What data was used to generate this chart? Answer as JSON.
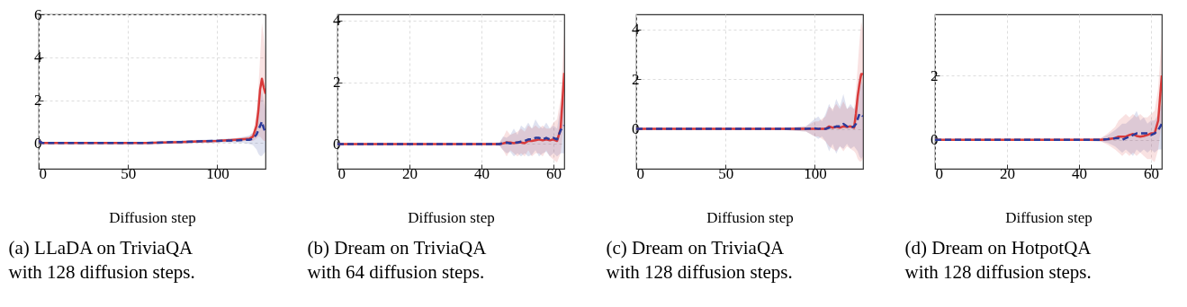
{
  "chart_data": [
    {
      "type": "line",
      "title": "(a) LLaDA on TriviaQA with 128 diffusion steps.",
      "xlabel": "Diffusion step",
      "x": [
        0,
        1,
        2,
        10,
        20,
        30,
        40,
        50,
        60,
        70,
        80,
        90,
        100,
        110,
        115,
        118,
        120,
        122,
        123,
        124,
        125,
        126,
        127
      ],
      "xlim": [
        0,
        127
      ],
      "xticks": [
        0,
        50,
        100
      ],
      "ylim": [
        -1.2,
        6
      ],
      "yticks": [
        0,
        2,
        4,
        6
      ],
      "grid": true,
      "series": [
        {
          "color": "#2b3a9a",
          "line_style": "dashed",
          "values": [
            0.1,
            0.05,
            0,
            0,
            0,
            0,
            0,
            0,
            0,
            0.03,
            0.05,
            0.08,
            0.1,
            0.12,
            0.15,
            0.15,
            0.2,
            0.4,
            0.6,
            0.8,
            1.0,
            0.7,
            0.5
          ],
          "lower": [
            0.05,
            0,
            -0.05,
            -0.05,
            -0.05,
            -0.05,
            -0.05,
            -0.05,
            -0.05,
            -0.05,
            -0.02,
            0,
            0.02,
            0,
            0,
            -0.05,
            -0.1,
            -0.3,
            -0.5,
            -0.6,
            -0.6,
            -0.5,
            -0.4
          ],
          "upper": [
            0.15,
            0.1,
            0.05,
            0.05,
            0.05,
            0.05,
            0.05,
            0.05,
            0.05,
            0.1,
            0.12,
            0.15,
            0.18,
            0.22,
            0.3,
            0.35,
            0.5,
            0.9,
            1.3,
            2.0,
            2.5,
            2.0,
            1.5
          ]
        },
        {
          "color": "#d93a3a",
          "line_style": "solid",
          "values": [
            0.1,
            0.05,
            0,
            0,
            0,
            0,
            0,
            0,
            0,
            0.02,
            0.05,
            0.08,
            0.1,
            0.15,
            0.18,
            0.2,
            0.3,
            0.8,
            1.5,
            2.5,
            3.0,
            2.6,
            2.3
          ],
          "lower": [
            0.05,
            0,
            -0.05,
            -0.05,
            -0.05,
            -0.05,
            -0.05,
            -0.05,
            -0.05,
            -0.03,
            0,
            0.03,
            0.05,
            0.08,
            0.1,
            0.1,
            0.1,
            0.2,
            0.3,
            0.3,
            0.2,
            0.1,
            0.1
          ],
          "upper": [
            0.15,
            0.1,
            0.05,
            0.05,
            0.05,
            0.05,
            0.05,
            0.05,
            0.05,
            0.07,
            0.1,
            0.13,
            0.15,
            0.22,
            0.26,
            0.32,
            0.5,
            1.4,
            2.5,
            4.0,
            5.6,
            5.0,
            4.0
          ]
        }
      ]
    },
    {
      "type": "line",
      "title": "(b) Dream on TriviaQA with 64 diffusion steps.",
      "xlabel": "Diffusion step",
      "x": [
        0,
        10,
        20,
        30,
        40,
        45,
        46,
        47,
        48,
        49,
        50,
        51,
        52,
        53,
        54,
        55,
        56,
        57,
        58,
        59,
        60,
        61,
        62,
        63
      ],
      "xlim": [
        0,
        63
      ],
      "xticks": [
        0,
        20,
        40,
        60
      ],
      "ylim": [
        -0.8,
        4.2
      ],
      "yticks": [
        0,
        2,
        4
      ],
      "grid": true,
      "series": [
        {
          "color": "#2b3a9a",
          "line_style": "dashed",
          "values": [
            0,
            0,
            0,
            0,
            0,
            0,
            0.03,
            0.05,
            0.02,
            0.05,
            0.05,
            0.08,
            0.1,
            0.15,
            0.15,
            0.2,
            0.2,
            0.15,
            0.2,
            0.15,
            0.2,
            0.15,
            0.45,
            0.6
          ],
          "lower": [
            -0.03,
            -0.03,
            -0.03,
            -0.03,
            -0.03,
            -0.05,
            -0.2,
            -0.3,
            -0.25,
            -0.4,
            -0.3,
            -0.4,
            -0.3,
            -0.4,
            -0.35,
            -0.2,
            -0.4,
            -0.3,
            -0.25,
            -0.4,
            -0.3,
            -0.4,
            -0.3,
            -0.3
          ],
          "upper": [
            0.03,
            0.03,
            0.03,
            0.03,
            0.03,
            0.05,
            0.25,
            0.2,
            0.3,
            0.5,
            0.3,
            0.6,
            0.5,
            0.7,
            0.5,
            0.8,
            0.6,
            0.5,
            0.7,
            0.5,
            0.6,
            0.5,
            1.2,
            1.5
          ]
        },
        {
          "color": "#d93a3a",
          "line_style": "solid",
          "values": [
            0,
            0,
            0,
            0,
            0,
            0,
            0.02,
            0.05,
            0.05,
            0.03,
            0.05,
            0.05,
            0.03,
            0.1,
            0.1,
            0.12,
            0.15,
            0.12,
            0.15,
            0.12,
            0.15,
            0.1,
            0.5,
            2.3
          ],
          "lower": [
            -0.03,
            -0.03,
            -0.03,
            -0.03,
            -0.03,
            -0.05,
            -0.2,
            -0.4,
            -0.2,
            -0.3,
            -0.4,
            -0.3,
            -0.4,
            -0.2,
            -0.4,
            -0.3,
            -0.3,
            -0.4,
            -0.2,
            -0.4,
            -0.5,
            -0.6,
            -0.3,
            0.8
          ],
          "upper": [
            0.03,
            0.03,
            0.03,
            0.03,
            0.03,
            0.05,
            0.2,
            0.45,
            0.3,
            0.35,
            0.4,
            0.5,
            0.4,
            0.6,
            0.5,
            0.6,
            0.5,
            0.6,
            0.5,
            0.5,
            0.7,
            0.8,
            1.5,
            3.6
          ]
        }
      ]
    },
    {
      "type": "line",
      "title": "(c) Dream on TriviaQA with 128 diffusion steps.",
      "xlabel": "Diffusion step",
      "x": [
        0,
        20,
        40,
        60,
        80,
        95,
        100,
        102,
        104,
        106,
        108,
        110,
        112,
        114,
        116,
        118,
        120,
        122,
        123,
        124,
        125,
        126,
        127
      ],
      "xlim": [
        0,
        127
      ],
      "xticks": [
        0,
        50,
        100
      ],
      "ylim": [
        -1.6,
        4.6
      ],
      "yticks": [
        0,
        2,
        4
      ],
      "grid": true,
      "series": [
        {
          "color": "#2b3a9a",
          "line_style": "dashed",
          "values": [
            0,
            0,
            0,
            0,
            0,
            0,
            0.02,
            0,
            0.02,
            0,
            0.05,
            0.05,
            0.1,
            0.1,
            0.2,
            0.1,
            0.05,
            0.1,
            0.2,
            0.4,
            0.6,
            0.6,
            0.5
          ],
          "lower": [
            -0.03,
            -0.03,
            -0.03,
            -0.03,
            -0.03,
            -0.1,
            -0.3,
            -0.4,
            -0.3,
            -0.5,
            -0.9,
            -0.6,
            -1.0,
            -0.7,
            -0.8,
            -0.6,
            -0.8,
            -0.7,
            -0.8,
            -0.9,
            -1.1,
            -1.2,
            -1.1
          ],
          "upper": [
            0.03,
            0.03,
            0.03,
            0.03,
            0.03,
            0.1,
            0.4,
            0.5,
            0.3,
            0.6,
            1.0,
            0.7,
            1.2,
            0.9,
            1.4,
            0.8,
            1.0,
            0.8,
            1.0,
            1.6,
            2.2,
            2.0,
            1.7
          ]
        },
        {
          "color": "#d93a3a",
          "line_style": "solid",
          "values": [
            0,
            0,
            0,
            0,
            0,
            0,
            0,
            0,
            0,
            0,
            0.1,
            0.05,
            0.08,
            0.05,
            0.1,
            0.08,
            0.1,
            0.05,
            0.6,
            1.3,
            1.8,
            2.2,
            2.2
          ],
          "lower": [
            -0.03,
            -0.03,
            -0.03,
            -0.03,
            -0.03,
            -0.1,
            -0.3,
            -0.3,
            -0.4,
            -0.5,
            -0.7,
            -0.8,
            -0.9,
            -0.7,
            -0.9,
            -0.7,
            -0.8,
            -0.9,
            -1.0,
            -1.2,
            -1.3,
            -1.3,
            -1.2
          ],
          "upper": [
            0.03,
            0.03,
            0.03,
            0.03,
            0.03,
            0.1,
            0.3,
            0.3,
            0.4,
            0.5,
            0.9,
            0.8,
            1.0,
            0.8,
            1.1,
            0.8,
            0.9,
            0.8,
            1.5,
            2.5,
            3.5,
            4.3,
            4.0
          ]
        }
      ]
    },
    {
      "type": "line",
      "title": "(d) Dream on HotpotQA with 128 diffusion steps.",
      "xlabel": "Diffusion step",
      "x": [
        0,
        10,
        20,
        30,
        40,
        46,
        48,
        50,
        51,
        52,
        53,
        54,
        55,
        56,
        57,
        58,
        59,
        60,
        61,
        62,
        63
      ],
      "xlim": [
        0,
        63
      ],
      "xticks": [
        0,
        20,
        40,
        60
      ],
      "ylim": [
        -0.9,
        3.9
      ],
      "yticks": [
        0,
        2
      ],
      "grid": true,
      "series": [
        {
          "color": "#2b3a9a",
          "line_style": "dashed",
          "values": [
            0,
            0,
            0,
            0,
            0,
            0,
            0.02,
            0.05,
            0.05,
            0,
            0.05,
            0.1,
            0.15,
            0.2,
            0.2,
            0.2,
            0.2,
            0.15,
            0.2,
            0.3,
            0.5
          ],
          "lower": [
            -0.03,
            -0.03,
            -0.03,
            -0.03,
            -0.03,
            -0.05,
            -0.1,
            -0.2,
            -0.3,
            -0.4,
            -0.3,
            -0.4,
            -0.5,
            -0.3,
            -0.4,
            -0.3,
            -0.4,
            -0.3,
            -0.4,
            -0.3,
            -0.3
          ],
          "upper": [
            0.03,
            0.03,
            0.03,
            0.03,
            0.03,
            0.05,
            0.15,
            0.3,
            0.4,
            0.5,
            0.5,
            0.6,
            0.7,
            0.9,
            0.6,
            0.7,
            0.5,
            0.6,
            0.6,
            0.8,
            1.1
          ]
        },
        {
          "color": "#d93a3a",
          "line_style": "solid",
          "values": [
            0,
            0,
            0,
            0,
            0,
            0,
            0.02,
            0.05,
            0.1,
            0.1,
            0.1,
            0.15,
            0.18,
            0.12,
            0.1,
            0.12,
            0.15,
            0.2,
            0.2,
            0.6,
            2.0
          ],
          "lower": [
            -0.03,
            -0.03,
            -0.03,
            -0.03,
            -0.03,
            -0.05,
            -0.15,
            -0.3,
            -0.4,
            -0.5,
            -0.4,
            -0.5,
            -0.4,
            -0.5,
            -0.4,
            -0.5,
            -0.6,
            -0.6,
            -0.7,
            -0.3,
            0.6
          ],
          "upper": [
            0.03,
            0.03,
            0.03,
            0.03,
            0.03,
            0.05,
            0.2,
            0.4,
            0.6,
            0.7,
            0.8,
            0.7,
            0.8,
            0.7,
            0.8,
            0.7,
            0.7,
            0.8,
            0.9,
            1.6,
            3.3
          ]
        }
      ]
    }
  ]
}
